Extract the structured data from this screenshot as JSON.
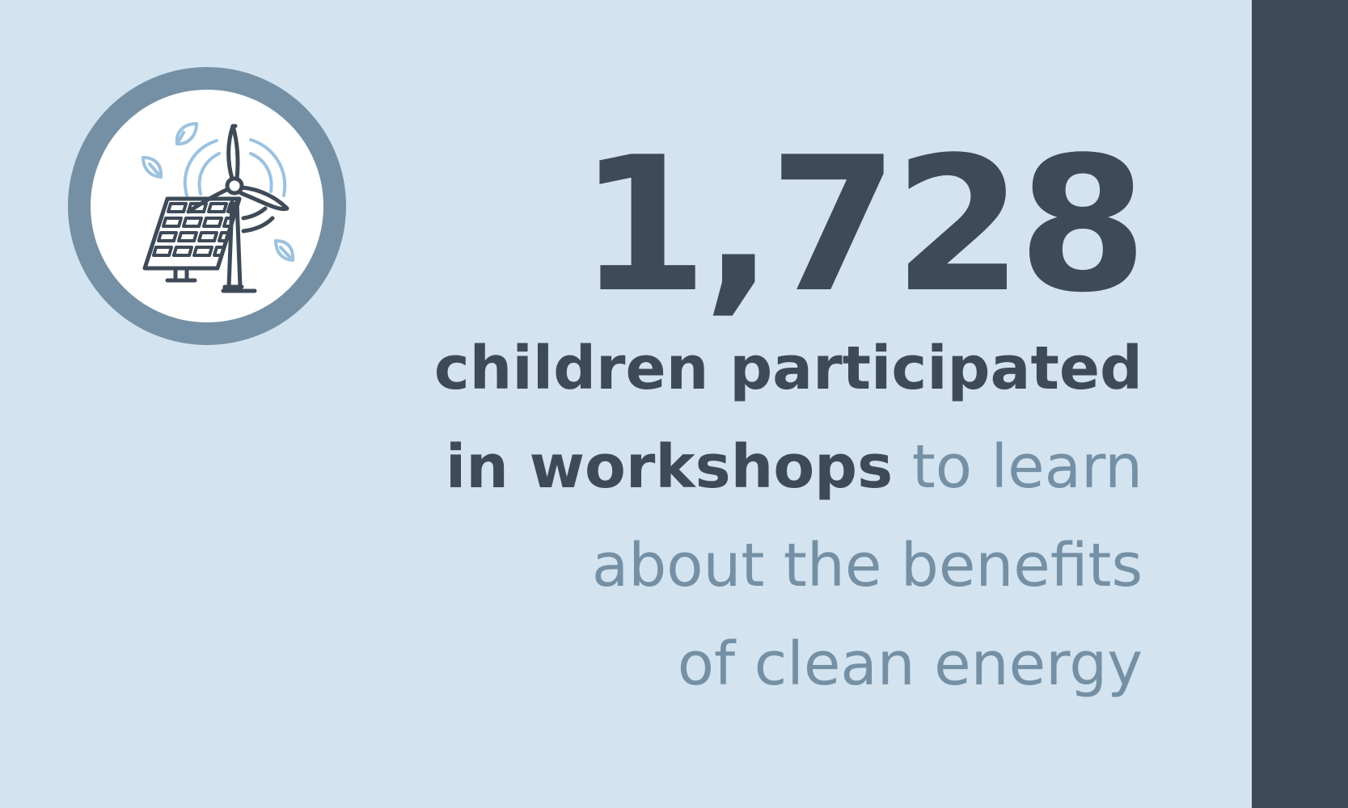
{
  "colors": {
    "background": "#d3e3f0",
    "side_bar": "#3e4a57",
    "ring": "#7590a4",
    "icon_stroke": "#3e4a57",
    "icon_accent": "#9cc2df",
    "number_text": "#3e4a57",
    "highlight_text": "#3e4a57",
    "body_text": "#7590a4"
  },
  "icon": {
    "name": "solar-panel-wind-turbine-icon"
  },
  "stat": {
    "number": "1,728",
    "highlight_line1": "children participated",
    "highlight_line2": "in workshops",
    "rest_line2": "to learn",
    "rest_line3": "about the benefits",
    "rest_line4": "of clean energy"
  }
}
